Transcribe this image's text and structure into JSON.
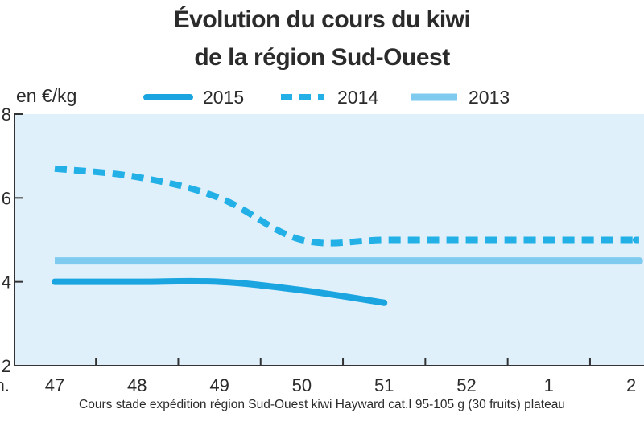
{
  "title_line1": "Évolution du cours du kiwi",
  "title_line2": "de la région Sud-Ouest",
  "unit_label": "en €/kg",
  "source_note": "Cours stade expédition région Sud-Ouest kiwi Hayward cat.I 95-105 g (30 fruits) plateau",
  "x_axis_prefix": "m.",
  "colors": {
    "plot_bg": "#dff0fb",
    "series_2015": "#1aa5e0",
    "series_2014": "#22b0e6",
    "series_2013": "#7fcbf0",
    "axis": "#333333",
    "text": "#2b2b2b"
  },
  "chart_data": {
    "type": "line",
    "title": "Évolution du cours du kiwi de la région Sud-Ouest",
    "ylabel": "en €/kg",
    "xlabel": "",
    "categories": [
      "47",
      "48",
      "49",
      "50",
      "51",
      "52",
      "1",
      "2"
    ],
    "ylim": [
      2,
      8
    ],
    "yticks": [
      2,
      4,
      6,
      8
    ],
    "legend_position": "top",
    "grid": false,
    "series": [
      {
        "name": "2015",
        "style": "solid",
        "x": [
          47,
          48,
          49,
          50,
          51
        ],
        "values": [
          4.0,
          4.0,
          4.0,
          3.8,
          3.5
        ]
      },
      {
        "name": "2014",
        "style": "dashed",
        "x": [
          47,
          48,
          49,
          50,
          51,
          52,
          1,
          2
        ],
        "values": [
          6.7,
          6.5,
          6.0,
          5.0,
          5.0,
          5.0,
          5.0,
          5.0
        ]
      },
      {
        "name": "2013",
        "style": "solid-light",
        "x": [
          47,
          48,
          49,
          50,
          51,
          52,
          1,
          2
        ],
        "values": [
          4.5,
          4.5,
          4.5,
          4.5,
          4.5,
          4.5,
          4.5,
          4.5
        ]
      }
    ]
  }
}
